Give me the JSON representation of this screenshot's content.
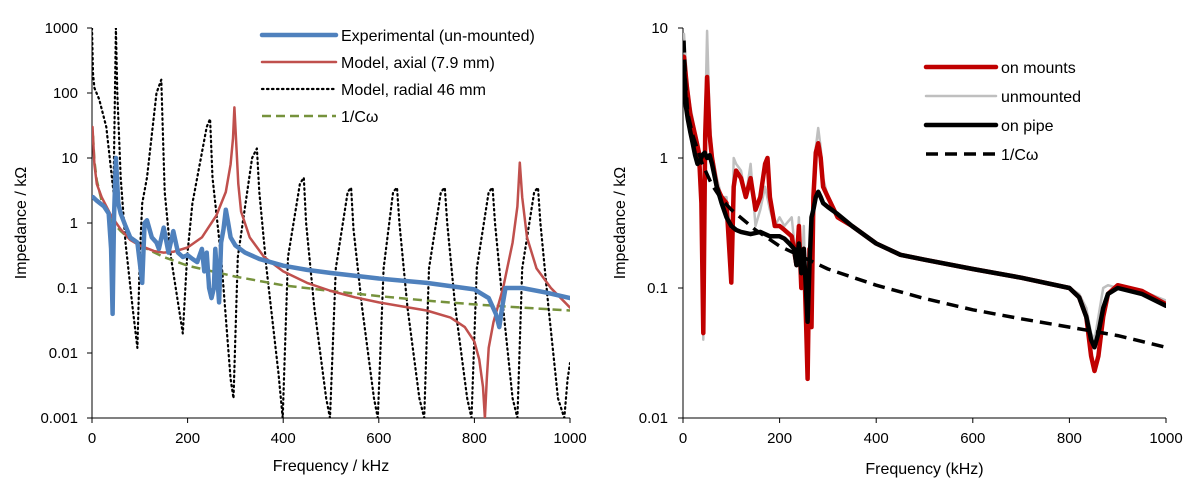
{
  "chart_data": [
    {
      "type": "line",
      "xlabel": "Frequency / kHz",
      "ylabel": "Impedance / kΩ",
      "yscale": "log",
      "xlim": [
        0,
        1000
      ],
      "ylim": [
        0.001,
        1000
      ],
      "x_ticks": [
        "0",
        "200",
        "400",
        "600",
        "800",
        "1000"
      ],
      "y_ticks": [
        "0.001",
        "0.01",
        "0.1",
        "1",
        "10",
        "100",
        "1000"
      ],
      "grid": false,
      "legend_position": "top-right",
      "series": [
        {
          "name": "Experimental (un-mounted)",
          "color": "#4f81bd",
          "style": "solid-thick",
          "x": [
            2,
            10,
            25,
            35,
            40,
            43,
            46,
            50,
            55,
            60,
            70,
            80,
            95,
            105,
            110,
            115,
            125,
            135,
            140,
            150,
            160,
            170,
            180,
            190,
            200,
            210,
            220,
            230,
            235,
            240,
            245,
            250,
            255,
            258,
            262,
            266,
            270,
            275,
            280,
            285,
            290,
            300,
            320,
            350,
            400,
            450,
            500,
            600,
            700,
            800,
            830,
            845,
            852,
            858,
            865,
            880,
            900,
            950,
            1000
          ],
          "y": [
            2.5,
            2.2,
            1.8,
            1.4,
            0.4,
            0.04,
            1.2,
            10,
            2.0,
            1.4,
            0.9,
            0.6,
            0.5,
            0.12,
            1.0,
            1.1,
            0.6,
            0.5,
            0.4,
            0.85,
            0.35,
            0.75,
            0.35,
            0.3,
            0.32,
            0.28,
            0.25,
            0.4,
            0.18,
            0.35,
            0.1,
            0.07,
            0.1,
            0.4,
            0.15,
            0.06,
            0.5,
            0.8,
            1.6,
            1.0,
            0.6,
            0.45,
            0.35,
            0.28,
            0.22,
            0.19,
            0.17,
            0.14,
            0.12,
            0.095,
            0.07,
            0.04,
            0.025,
            0.05,
            0.1,
            0.1,
            0.1,
            0.085,
            0.07
          ]
        },
        {
          "name": "Model, axial (7.9 mm)",
          "color": "#c0504d",
          "style": "solid",
          "x": [
            1,
            5,
            10,
            20,
            40,
            60,
            80,
            100,
            130,
            150,
            170,
            200,
            230,
            260,
            280,
            290,
            295,
            298,
            302,
            306,
            312,
            330,
            360,
            400,
            450,
            500,
            550,
            600,
            650,
            700,
            750,
            780,
            800,
            810,
            818,
            822,
            826,
            830,
            840,
            860,
            880,
            890,
            895,
            900,
            910,
            930,
            960,
            1000
          ],
          "y": [
            30,
            8,
            4,
            2.5,
            1.3,
            0.8,
            0.55,
            0.45,
            0.37,
            0.35,
            0.36,
            0.42,
            0.6,
            1.3,
            3,
            8,
            20,
            60,
            15,
            4,
            1.5,
            0.6,
            0.3,
            0.18,
            0.12,
            0.09,
            0.072,
            0.06,
            0.052,
            0.045,
            0.035,
            0.025,
            0.015,
            0.008,
            0.003,
            0.001,
            0.004,
            0.012,
            0.03,
            0.1,
            0.5,
            1.8,
            8.5,
            2.5,
            0.6,
            0.2,
            0.1,
            0.05
          ]
        },
        {
          "name": "Model, radial 46 mm",
          "color": "#000000",
          "style": "dotted",
          "x": [
            0,
            2,
            5,
            15,
            30,
            45,
            50,
            53,
            60,
            70,
            85,
            95,
            100,
            105,
            115,
            135,
            145,
            148,
            152,
            165,
            190,
            199,
            210,
            240,
            247,
            252,
            270,
            290,
            296,
            305,
            335,
            345,
            350,
            365,
            390,
            399,
            410,
            435,
            443,
            448,
            465,
            490,
            498,
            510,
            535,
            542,
            547,
            565,
            590,
            598,
            610,
            630,
            638,
            643,
            660,
            685,
            695,
            705,
            730,
            738,
            743,
            760,
            785,
            794,
            805,
            830,
            838,
            843,
            860,
            880,
            890,
            900,
            925,
            933,
            938,
            955,
            975,
            988,
            995,
            1000
          ],
          "y": [
            1000,
            200,
            120,
            80,
            30,
            3,
            1000,
            100,
            5,
            0.5,
            0.05,
            0.012,
            0.3,
            2,
            5,
            100,
            160,
            30,
            3,
            0.3,
            0.02,
            0.3,
            2,
            30,
            40,
            5,
            0.3,
            0.004,
            0.002,
            0.3,
            10,
            14,
            3,
            0.2,
            0.005,
            0.001,
            0.3,
            4,
            5,
            1,
            0.05,
            0.002,
            0.001,
            0.2,
            3,
            3.5,
            0.8,
            0.05,
            0.002,
            0.001,
            0.2,
            3,
            3.5,
            1,
            0.05,
            0.002,
            0.001,
            0.2,
            3,
            3.5,
            1,
            0.05,
            0.002,
            0.001,
            0.2,
            3,
            3.5,
            1,
            0.05,
            0.002,
            0.001,
            0.2,
            3,
            3.5,
            1,
            0.05,
            0.002,
            0.001,
            0.004,
            0.007
          ]
        },
        {
          "name": "1/Cω",
          "color": "#76923c",
          "style": "dashed",
          "x": [
            2,
            5,
            10,
            20,
            40,
            60,
            80,
            100,
            150,
            200,
            300,
            400,
            500,
            600,
            700,
            800,
            900,
            1000
          ],
          "y": [
            22,
            9,
            4.5,
            2.2,
            1.1,
            0.75,
            0.56,
            0.45,
            0.3,
            0.22,
            0.15,
            0.11,
            0.09,
            0.075,
            0.064,
            0.056,
            0.05,
            0.045
          ]
        }
      ]
    },
    {
      "type": "line",
      "xlabel": "Frequency (kHz)",
      "ylabel": "Impedance / kΩ",
      "yscale": "log",
      "xlim": [
        0,
        1000
      ],
      "ylim": [
        0.01,
        10
      ],
      "x_ticks": [
        "0",
        "200",
        "400",
        "600",
        "800",
        "1000"
      ],
      "y_ticks": [
        "0.01",
        "0.1",
        "1",
        "10"
      ],
      "grid": false,
      "legend_position": "top-right",
      "series": [
        {
          "name": "on mounts",
          "color": "#c00000",
          "style": "solid-thick",
          "x": [
            2,
            8,
            15,
            25,
            33,
            38,
            42,
            46,
            50,
            55,
            60,
            70,
            80,
            90,
            100,
            105,
            110,
            120,
            130,
            140,
            150,
            160,
            170,
            175,
            180,
            190,
            200,
            210,
            225,
            235,
            240,
            245,
            250,
            255,
            258,
            262,
            266,
            270,
            275,
            280,
            285,
            290,
            300,
            320,
            350,
            400,
            450,
            500,
            600,
            700,
            800,
            820,
            835,
            845,
            852,
            860,
            870,
            880,
            900,
            950,
            1000
          ],
          "y": [
            6,
            3.5,
            2.2,
            1.5,
            1.1,
            0.45,
            0.045,
            1.5,
            4.2,
            1.5,
            1.0,
            0.6,
            0.5,
            0.45,
            0.11,
            0.6,
            0.8,
            0.7,
            0.5,
            0.7,
            0.4,
            0.5,
            0.9,
            1.0,
            0.5,
            0.3,
            0.3,
            0.28,
            0.25,
            0.15,
            0.3,
            0.1,
            0.2,
            0.05,
            0.02,
            0.2,
            0.05,
            0.5,
            1.1,
            1.3,
            1.0,
            0.6,
            0.5,
            0.35,
            0.3,
            0.22,
            0.18,
            0.165,
            0.14,
            0.12,
            0.1,
            0.085,
            0.06,
            0.03,
            0.023,
            0.03,
            0.06,
            0.09,
            0.105,
            0.095,
            0.075
          ]
        },
        {
          "name": "unmounted",
          "color": "#bfbfbf",
          "style": "solid",
          "x": [
            2,
            8,
            15,
            25,
            33,
            38,
            42,
            46,
            50,
            55,
            60,
            70,
            80,
            90,
            100,
            105,
            110,
            120,
            130,
            140,
            150,
            160,
            170,
            180,
            190,
            200,
            210,
            225,
            235,
            240,
            245,
            250,
            255,
            258,
            262,
            266,
            270,
            275,
            280,
            285,
            290,
            300,
            320,
            350,
            400,
            450,
            500,
            600,
            700,
            800,
            820,
            835,
            845,
            852,
            860,
            870,
            880,
            900,
            950,
            1000
          ],
          "y": [
            9,
            4,
            2.5,
            1.6,
            1.2,
            0.5,
            0.04,
            2,
            9.5,
            2,
            1.1,
            0.7,
            0.5,
            0.5,
            0.12,
            1.0,
            0.9,
            0.8,
            0.5,
            0.9,
            0.3,
            0.4,
            0.6,
            0.4,
            0.3,
            0.35,
            0.3,
            0.35,
            0.15,
            0.35,
            0.1,
            0.3,
            0.05,
            0.06,
            0.2,
            0.05,
            0.6,
            1.2,
            1.7,
            1.2,
            0.7,
            0.5,
            0.35,
            0.3,
            0.22,
            0.18,
            0.165,
            0.14,
            0.12,
            0.1,
            0.09,
            0.07,
            0.045,
            0.04,
            0.06,
            0.1,
            0.105,
            0.1,
            0.095,
            0.08
          ]
        },
        {
          "name": "on pipe",
          "color": "#000000",
          "style": "solid-thick",
          "x": [
            2,
            6,
            10,
            15,
            20,
            25,
            30,
            35,
            40,
            45,
            50,
            55,
            60,
            70,
            80,
            90,
            100,
            110,
            120,
            140,
            160,
            180,
            200,
            210,
            220,
            230,
            235,
            240,
            245,
            250,
            255,
            258,
            262,
            266,
            270,
            275,
            280,
            285,
            290,
            300,
            320,
            350,
            400,
            450,
            500,
            600,
            700,
            800,
            820,
            835,
            845,
            852,
            860,
            870,
            880,
            900,
            950,
            1000
          ],
          "y": [
            5,
            2.5,
            2.0,
            1.6,
            1.3,
            1.05,
            0.9,
            0.95,
            1.05,
            1.1,
            1.0,
            1.05,
            0.9,
            0.6,
            0.45,
            0.35,
            0.3,
            0.28,
            0.27,
            0.26,
            0.27,
            0.25,
            0.25,
            0.24,
            0.22,
            0.2,
            0.15,
            0.22,
            0.13,
            0.2,
            0.09,
            0.055,
            0.15,
            0.35,
            0.4,
            0.5,
            0.55,
            0.5,
            0.45,
            0.42,
            0.37,
            0.3,
            0.22,
            0.18,
            0.165,
            0.14,
            0.12,
            0.1,
            0.085,
            0.06,
            0.04,
            0.035,
            0.045,
            0.07,
            0.09,
            0.1,
            0.09,
            0.073
          ]
        },
        {
          "name": "1/Cω",
          "color": "#000000",
          "style": "dashed-thick",
          "x": [
            2,
            5,
            10,
            20,
            40,
            60,
            80,
            100,
            150,
            200,
            300,
            400,
            500,
            600,
            700,
            800,
            900,
            1000
          ],
          "y": [
            8,
            4,
            2.2,
            1.5,
            0.9,
            0.62,
            0.48,
            0.4,
            0.28,
            0.21,
            0.14,
            0.105,
            0.083,
            0.068,
            0.058,
            0.05,
            0.043,
            0.035
          ]
        }
      ]
    }
  ]
}
